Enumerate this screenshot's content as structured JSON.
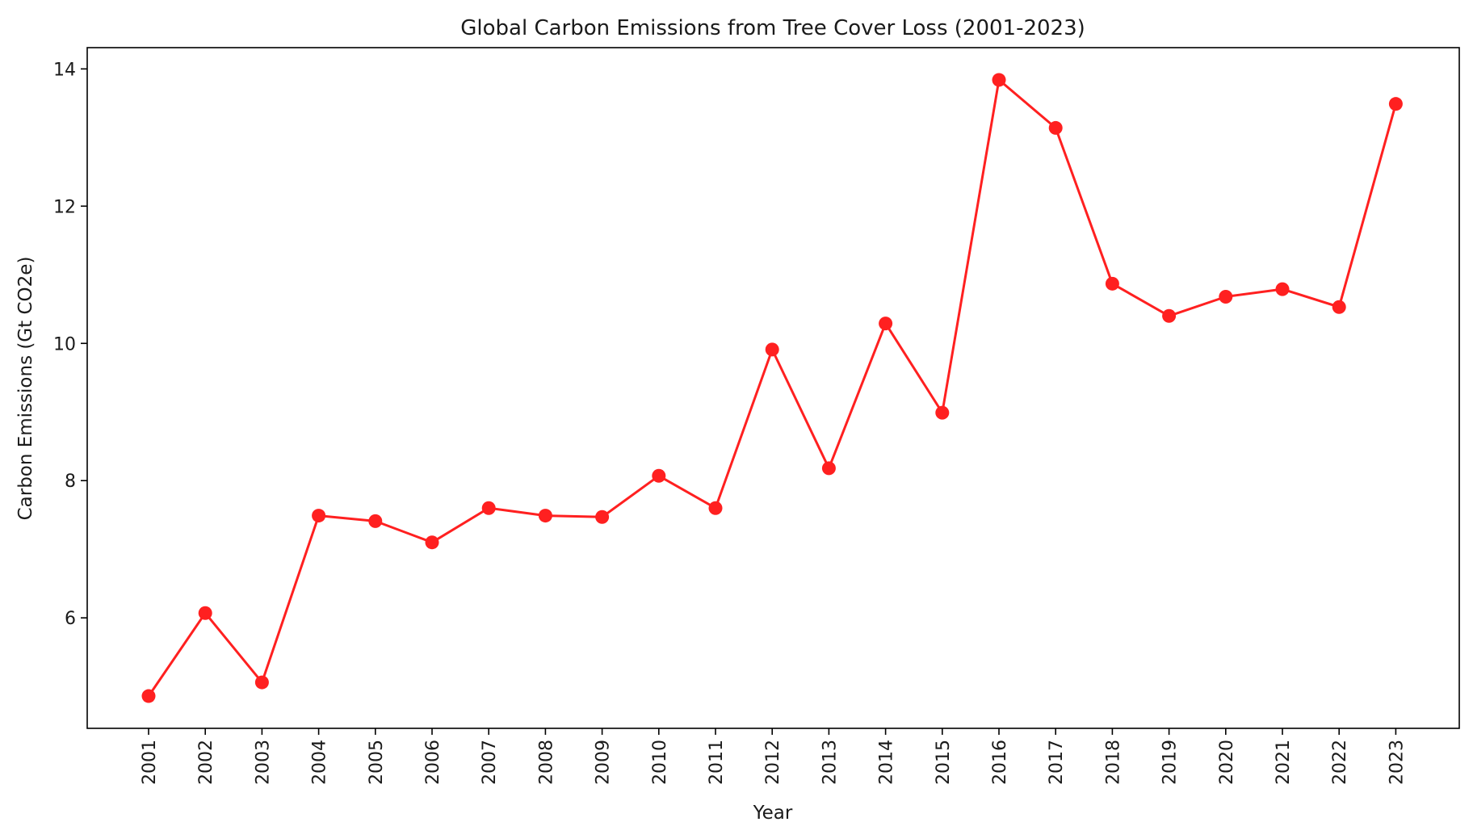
{
  "chart_data": {
    "type": "line",
    "title": "Global Carbon Emissions from Tree Cover Loss (2001-2023)",
    "xlabel": "Year",
    "ylabel": "Carbon Emissions (Gt CO2e)",
    "x": [
      "2001",
      "2002",
      "2003",
      "2004",
      "2005",
      "2006",
      "2007",
      "2008",
      "2009",
      "2010",
      "2011",
      "2012",
      "2013",
      "2014",
      "2015",
      "2016",
      "2017",
      "2018",
      "2019",
      "2020",
      "2021",
      "2022",
      "2023"
    ],
    "y_ticks": [
      6,
      8,
      10,
      12,
      14
    ],
    "ylim": [
      4.39,
      14.31
    ],
    "grid": false,
    "legend": "none",
    "series": [
      {
        "color": "#ff2020",
        "values": [
          4.86,
          6.07,
          5.06,
          7.49,
          7.41,
          7.1,
          7.6,
          7.49,
          7.47,
          8.07,
          7.6,
          9.91,
          8.18,
          10.29,
          8.99,
          13.84,
          13.14,
          10.87,
          10.4,
          10.68,
          10.79,
          10.53,
          13.49
        ]
      }
    ]
  }
}
